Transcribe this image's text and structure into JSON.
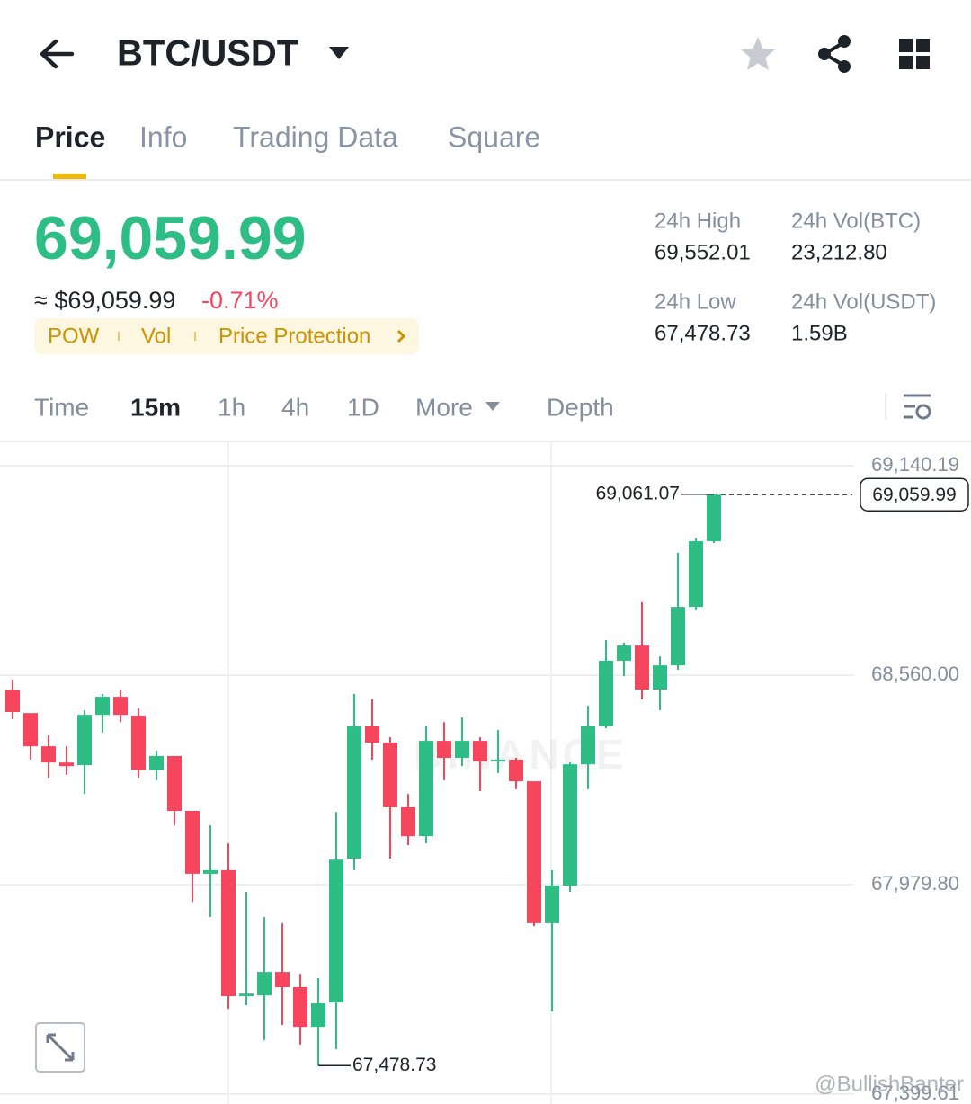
{
  "header": {
    "pair": "BTC/USDT"
  },
  "tabs": [
    "Price",
    "Info",
    "Trading Data",
    "Square"
  ],
  "ticker": {
    "price": "69,059.99",
    "fiat_price": "≈ $69,059.99",
    "change": "-0.71%",
    "tags": [
      "POW",
      "Vol",
      "Price Protection"
    ],
    "stats": [
      {
        "label": "24h High",
        "value": "69,552.01"
      },
      {
        "label": "24h Vol(BTC)",
        "value": "23,212.80"
      },
      {
        "label": "24h Low",
        "value": "67,478.73"
      },
      {
        "label": "24h Vol(USDT)",
        "value": "1.59B"
      }
    ]
  },
  "intervals": [
    "Time",
    "15m",
    "1h",
    "4h",
    "1D",
    "More",
    "Depth"
  ],
  "chart_data": {
    "type": "candlestick",
    "up_color": "#2ebd85",
    "down_color": "#f6465d",
    "ylim": [
      67399.61,
      69140.19
    ],
    "yticks": [
      {
        "value": 69140.19,
        "label": "69,140.19"
      },
      {
        "value": 68560.0,
        "label": "68,560.00"
      },
      {
        "value": 67979.8,
        "label": "67,979.80"
      },
      {
        "value": 67399.61,
        "label": "67,399.61"
      }
    ],
    "grid": true,
    "candles": [
      {
        "open": 68518,
        "high": 68548,
        "low": 68438,
        "close": 68458
      },
      {
        "open": 68455,
        "high": 68455,
        "low": 68326,
        "close": 68363
      },
      {
        "open": 68363,
        "high": 68393,
        "low": 68276,
        "close": 68318
      },
      {
        "open": 68318,
        "high": 68363,
        "low": 68284,
        "close": 68308
      },
      {
        "open": 68311,
        "high": 68463,
        "low": 68231,
        "close": 68450
      },
      {
        "open": 68450,
        "high": 68508,
        "low": 68401,
        "close": 68500
      },
      {
        "open": 68500,
        "high": 68518,
        "low": 68430,
        "close": 68450
      },
      {
        "open": 68448,
        "high": 68468,
        "low": 68276,
        "close": 68298
      },
      {
        "open": 68298,
        "high": 68351,
        "low": 68269,
        "close": 68336
      },
      {
        "open": 68336,
        "high": 68336,
        "low": 68144,
        "close": 68184
      },
      {
        "open": 68184,
        "high": 68184,
        "low": 67932,
        "close": 68010
      },
      {
        "open": 68010,
        "high": 68144,
        "low": 67890,
        "close": 68020
      },
      {
        "open": 68020,
        "high": 68094,
        "low": 67636,
        "close": 67671
      },
      {
        "open": 67671,
        "high": 67960,
        "low": 67646,
        "close": 67678
      },
      {
        "open": 67673,
        "high": 67890,
        "low": 67549,
        "close": 67738
      },
      {
        "open": 67738,
        "high": 67873,
        "low": 67591,
        "close": 67696
      },
      {
        "open": 67696,
        "high": 67733,
        "low": 67537,
        "close": 67586
      },
      {
        "open": 67586,
        "high": 67721,
        "low": 67478.73,
        "close": 67651
      },
      {
        "open": 67654,
        "high": 68181,
        "low": 67524,
        "close": 68049
      },
      {
        "open": 68052,
        "high": 68508,
        "low": 68020,
        "close": 68418
      },
      {
        "open": 68418,
        "high": 68493,
        "low": 68326,
        "close": 68373
      },
      {
        "open": 68373,
        "high": 68388,
        "low": 68052,
        "close": 68194
      },
      {
        "open": 68194,
        "high": 68231,
        "low": 68089,
        "close": 68114
      },
      {
        "open": 68114,
        "high": 68418,
        "low": 68094,
        "close": 68378
      },
      {
        "open": 68378,
        "high": 68430,
        "low": 68269,
        "close": 68331
      },
      {
        "open": 68331,
        "high": 68443,
        "low": 68308,
        "close": 68378
      },
      {
        "open": 68378,
        "high": 68388,
        "low": 68239,
        "close": 68321
      },
      {
        "open": 68321,
        "high": 68408,
        "low": 68289,
        "close": 68326
      },
      {
        "open": 68326,
        "high": 68331,
        "low": 68244,
        "close": 68266
      },
      {
        "open": 68266,
        "high": 68266,
        "low": 67865,
        "close": 67873
      },
      {
        "open": 67873,
        "high": 68020,
        "low": 67629,
        "close": 67977
      },
      {
        "open": 67977,
        "high": 68318,
        "low": 67960,
        "close": 68313
      },
      {
        "open": 68313,
        "high": 68475,
        "low": 68244,
        "close": 68418
      },
      {
        "open": 68418,
        "high": 68657,
        "low": 68413,
        "close": 68600
      },
      {
        "open": 68600,
        "high": 68650,
        "low": 68557,
        "close": 68642
      },
      {
        "open": 68642,
        "high": 68762,
        "low": 68493,
        "close": 68520
      },
      {
        "open": 68520,
        "high": 68612,
        "low": 68463,
        "close": 68587
      },
      {
        "open": 68587,
        "high": 68899,
        "low": 68575,
        "close": 68749
      },
      {
        "open": 68749,
        "high": 68941,
        "low": 68742,
        "close": 68931
      },
      {
        "open": 68931,
        "high": 69061.07,
        "low": 68926,
        "close": 69059.99
      }
    ],
    "high_marker": {
      "value": 69061.07,
      "label": "69,061.07"
    },
    "low_marker": {
      "value": 67478.73,
      "label": "67,478.73"
    },
    "last_price": {
      "value": 69059.99,
      "label": "69,059.99"
    },
    "watermark": "BINANCE"
  },
  "credit": "@BullishBanter"
}
